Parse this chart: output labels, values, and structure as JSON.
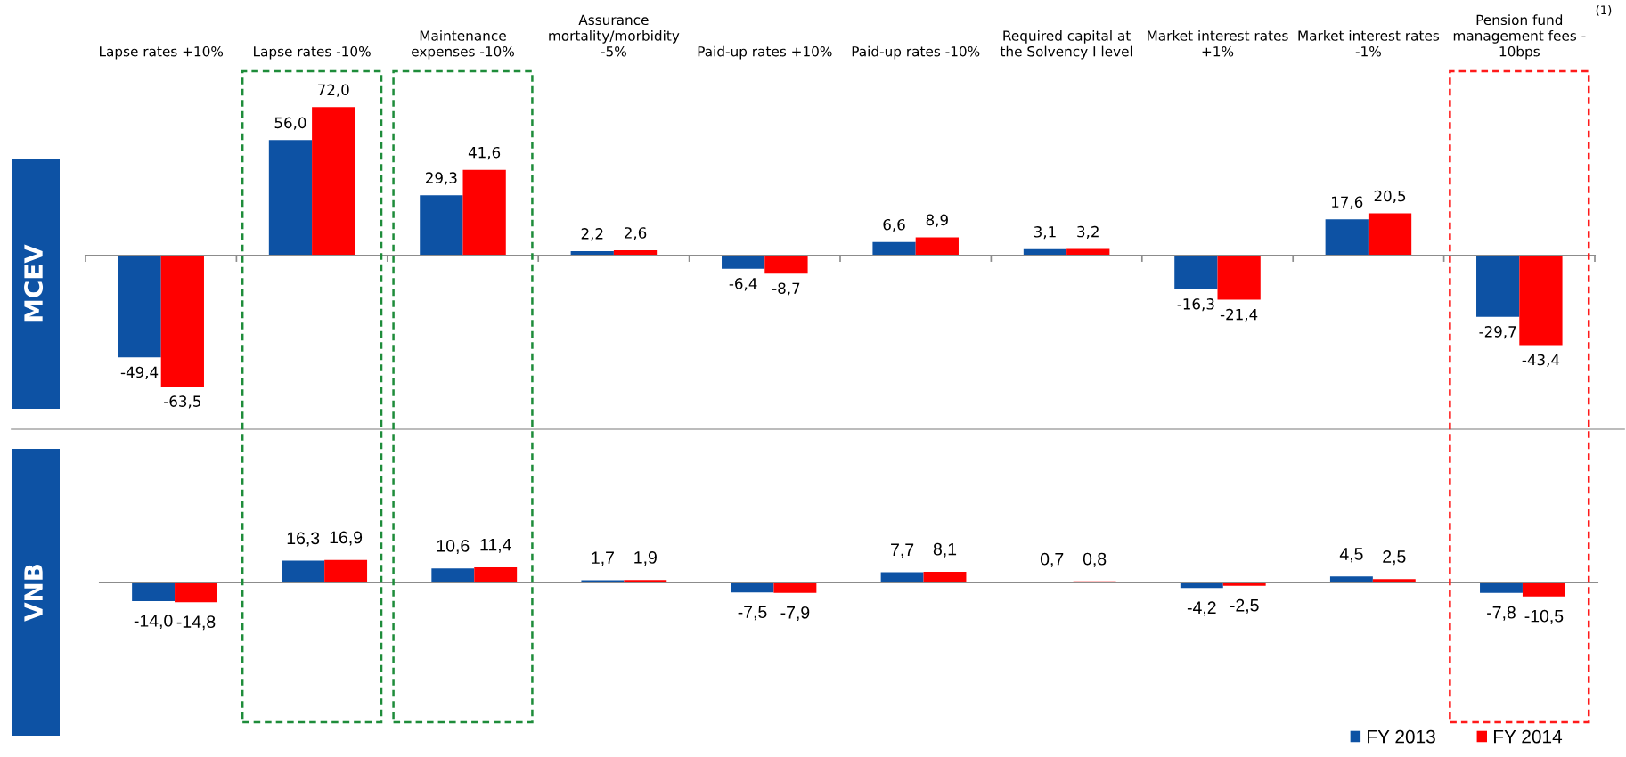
{
  "chart_data": [
    {
      "type": "bar",
      "ylabel": "MCEV",
      "categories": [
        "Lapse rates +10%",
        "Lapse rates -10%",
        "Maintenance\nexpenses -10%",
        "Assurance\nmortality/morbidity\n-5%",
        "Paid-up rates +10%",
        "Paid-up rates -10%",
        "Required capital at\nthe Solvency I level",
        "Market interest rates\n+1%",
        "Market interest rates\n-1%",
        "Pension fund\nmanagement fees -\n10bps"
      ],
      "series": [
        {
          "color": "#0d52a4",
          "values": [
            -49.4,
            56.0,
            29.3,
            2.2,
            -6.4,
            6.6,
            3.1,
            -16.3,
            17.6,
            -29.7
          ],
          "value_labels": [
            "-49,4",
            "56,0",
            "29,3",
            "2,2",
            "-6,4",
            "6,6",
            "3,1",
            "-16,3",
            "17,6",
            "-29,7"
          ]
        },
        {
          "color": "#ff0000",
          "values": [
            -63.5,
            72.0,
            41.6,
            2.6,
            -8.7,
            8.9,
            3.2,
            -21.4,
            20.5,
            -43.4
          ],
          "value_labels": [
            "-63,5",
            "72,0",
            "41,6",
            "2,6",
            "-8,7",
            "8,9",
            "3,2",
            "-21,4",
            "20,5",
            "-43,4"
          ]
        }
      ],
      "tick_labels": "x",
      "annotations": [
        "(1)"
      ]
    },
    {
      "type": "bar",
      "ylabel": "VNB",
      "categories": [
        null,
        null,
        null,
        null,
        null,
        null,
        null,
        null,
        null,
        null
      ],
      "series": [
        {
          "name": "FY 2013",
          "color": "#0d52a4",
          "values": [
            -14.0,
            16.3,
            10.6,
            1.7,
            -7.5,
            7.7,
            0.7,
            -4.2,
            4.5,
            -7.8
          ],
          "value_labels": [
            "-14,0",
            "16,3",
            "10,6",
            "1,7",
            "-7,5",
            "7,7",
            "0,7",
            "-4,2",
            "4,5",
            "-7,8"
          ]
        },
        {
          "name": "FY 2014",
          "color": "#ff0000",
          "values": [
            -14.8,
            16.9,
            11.4,
            1.9,
            -7.9,
            8.1,
            0.8,
            -2.5,
            2.5,
            -10.5
          ],
          "value_labels": [
            "-14,8",
            "16,9",
            "11,4",
            "1,9",
            "-7,9",
            "8,1",
            "0,8",
            "-2,5",
            "2,5",
            "-10,5"
          ]
        }
      ],
      "tick_labels": false,
      "legend": "bottom right"
    }
  ]
}
